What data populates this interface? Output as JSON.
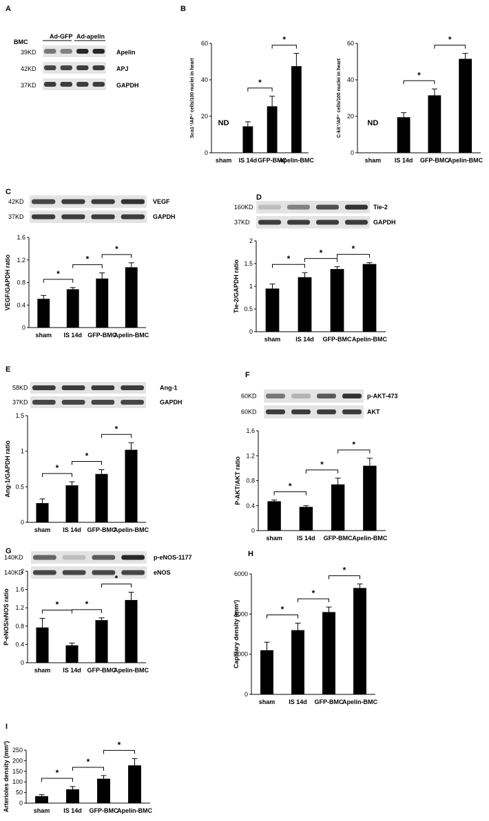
{
  "figure": {
    "background": "#ffffff",
    "bar_color": "#000000",
    "panelA": {
      "letter": "A",
      "row_label": "BMC",
      "groups": [
        "Ad-GFP",
        "Ad-apelin"
      ],
      "bands": [
        {
          "size": "39KD",
          "name": "Apelin",
          "intensity": [
            0.55,
            0.5,
            0.95,
            0.95
          ]
        },
        {
          "size": "42KD",
          "name": "APJ",
          "intensity": [
            0.8,
            0.8,
            0.85,
            0.85
          ]
        },
        {
          "size": "37KD",
          "name": "GAPDH",
          "intensity": [
            0.85,
            0.85,
            0.85,
            0.85
          ]
        }
      ]
    },
    "panelB": {
      "letter": "B"
    }
  },
  "chart_data": [
    {
      "id": "B1",
      "type": "bar",
      "categories": [
        "sham",
        "IS 14d",
        "GFP-BMC",
        "Apelin-BMC"
      ],
      "values": [
        null,
        14.5,
        25.5,
        47.5
      ],
      "errors": [
        0,
        2.5,
        5.5,
        7.0
      ],
      "annotations": [
        {
          "category": 0,
          "text": "ND"
        }
      ],
      "significance": [
        "*",
        "*"
      ],
      "ylabel": "Sca1⁺/AP⁺ cells/100 nuclei in heart",
      "ylim": [
        0,
        60
      ],
      "yticks": [
        "0",
        "20",
        "40",
        "60"
      ]
    },
    {
      "id": "B2",
      "type": "bar",
      "categories": [
        "sham",
        "IS 14d",
        "GFP-BMC",
        "Apelin-BMC"
      ],
      "values": [
        null,
        19.5,
        31.5,
        51.5
      ],
      "errors": [
        0,
        2.5,
        3.5,
        3.0
      ],
      "annotations": [
        {
          "category": 0,
          "text": "ND"
        }
      ],
      "significance": [
        "*",
        "*"
      ],
      "ylabel": "C-kit⁺/AP⁺ cells/100 nuclei in heart",
      "ylim": [
        0,
        60
      ],
      "yticks": [
        "0",
        "20",
        "40",
        "60"
      ]
    },
    {
      "id": "C",
      "type": "bar",
      "letter": "C",
      "categories": [
        "sham",
        "IS 14d",
        "GFP-BMC",
        "Apelin-BMC"
      ],
      "values": [
        0.51,
        0.68,
        0.87,
        1.07
      ],
      "errors": [
        0.06,
        0.03,
        0.1,
        0.08
      ],
      "significance": [
        "*",
        "*",
        "*"
      ],
      "ylabel": "VEGF/GAPDH ratio",
      "ylim": [
        0,
        1.6
      ],
      "yticks": [
        "0",
        "0.4",
        "0.8",
        "1.2",
        "1.6"
      ],
      "blot": [
        {
          "size": "42KD",
          "name": "VEGF",
          "intensity": [
            0.8,
            0.85,
            0.85,
            0.9
          ]
        },
        {
          "size": "37KD",
          "name": "GAPDH",
          "intensity": [
            0.85,
            0.85,
            0.85,
            0.85
          ]
        }
      ]
    },
    {
      "id": "D",
      "type": "bar",
      "letter": "D",
      "categories": [
        "sham",
        "IS 14d",
        "GFP-BMC",
        "Apelin-BMC"
      ],
      "values": [
        0.95,
        1.2,
        1.38,
        1.49
      ],
      "errors": [
        0.1,
        0.1,
        0.05,
        0.03
      ],
      "significance": [
        "*",
        "*",
        "*"
      ],
      "ylabel": "Tie-2/GAPDH ratio",
      "ylim": [
        0,
        2
      ],
      "yticks": [
        "0",
        "0.5",
        "1",
        "1.5",
        "2"
      ],
      "blot": [
        {
          "size": "160KD",
          "name": "Tie-2",
          "intensity": [
            0.2,
            0.5,
            0.75,
            0.9
          ]
        },
        {
          "size": "37KD",
          "name": "GAPDH",
          "intensity": [
            0.85,
            0.85,
            0.85,
            0.85
          ]
        }
      ]
    },
    {
      "id": "E",
      "type": "bar",
      "letter": "E",
      "categories": [
        "sham",
        "IS 14d",
        "GFP-BMC",
        "Apelin-BMC"
      ],
      "values": [
        0.27,
        0.52,
        0.68,
        1.02
      ],
      "errors": [
        0.06,
        0.05,
        0.06,
        0.1
      ],
      "significance": [
        "*",
        "*",
        "*"
      ],
      "ylabel": "Ang-1/GAPDH ratio",
      "ylim": [
        0,
        1.5
      ],
      "yticks": [
        "0",
        "0.5",
        "1",
        "1.5"
      ],
      "blot": [
        {
          "size": "58KD",
          "name": "Ang-1",
          "intensity": [
            0.85,
            0.85,
            0.85,
            0.85
          ]
        },
        {
          "size": "37KD",
          "name": "GAPDH",
          "intensity": [
            0.8,
            0.8,
            0.8,
            0.8
          ]
        }
      ]
    },
    {
      "id": "F",
      "type": "bar",
      "letter": "F",
      "categories": [
        "sham",
        "IS 14d",
        "GFP-BMC",
        "Apelin-BMC"
      ],
      "values": [
        0.47,
        0.38,
        0.74,
        1.04
      ],
      "errors": [
        0.02,
        0.02,
        0.1,
        0.12
      ],
      "significance": [
        "*",
        "*",
        "*"
      ],
      "ylabel": "P-AKT/AKT ratio",
      "ylim": [
        0,
        1.6
      ],
      "yticks": [
        "0",
        "0.4",
        "0.8",
        "1.2",
        "1.6"
      ],
      "blot": [
        {
          "size": "60KD",
          "name": "p-AKT-473",
          "intensity": [
            0.55,
            0.25,
            0.7,
            0.9
          ]
        },
        {
          "size": "60KD",
          "name": "AKT",
          "intensity": [
            0.85,
            0.85,
            0.85,
            0.85
          ]
        }
      ]
    },
    {
      "id": "G",
      "type": "bar",
      "letter": "G",
      "categories": [
        "sham",
        "IS 14d",
        "GFP-BMC",
        "Apelin-BMC"
      ],
      "values": [
        0.77,
        0.38,
        0.93,
        1.37
      ],
      "errors": [
        0.2,
        0.05,
        0.05,
        0.17
      ],
      "significance": [
        "*",
        "*",
        "*"
      ],
      "ylabel": "P-eNOS/eNOS ratio",
      "ylim": [
        0,
        2
      ],
      "yticks": [
        "0",
        "0.4",
        "0.8",
        "1.2",
        "1.6",
        "2"
      ],
      "blot": [
        {
          "size": "140KD",
          "name": "p-eNOS-1177",
          "intensity": [
            0.65,
            0.2,
            0.7,
            0.95
          ]
        },
        {
          "size": "140KD",
          "name": "eNOS",
          "intensity": [
            0.8,
            0.8,
            0.8,
            0.8
          ]
        }
      ]
    },
    {
      "id": "H",
      "type": "bar",
      "letter": "H",
      "categories": [
        "sham",
        "IS 14d",
        "GFP-BMC",
        "Apelin-BMC"
      ],
      "values": [
        2200,
        3200,
        4100,
        5300
      ],
      "errors": [
        400,
        350,
        250,
        200
      ],
      "significance": [
        "*",
        "*",
        "*"
      ],
      "ylabel": "Capillary density (mm²)",
      "ylim": [
        0,
        6000
      ],
      "yticks": [
        "0",
        "2000",
        "4000",
        "6000"
      ]
    },
    {
      "id": "I",
      "type": "bar",
      "letter": "I",
      "categories": [
        "sham",
        "IS 14d",
        "GFP-BMC",
        "Apelin-BMC"
      ],
      "values": [
        33,
        65,
        115,
        178
      ],
      "errors": [
        7,
        13,
        15,
        32
      ],
      "significance": [
        "*",
        "*",
        "*"
      ],
      "ylabel": "Arterioles density (mm²)",
      "ylim": [
        0,
        250
      ],
      "yticks": [
        "0",
        "50",
        "100",
        "150",
        "200",
        "250"
      ]
    }
  ]
}
